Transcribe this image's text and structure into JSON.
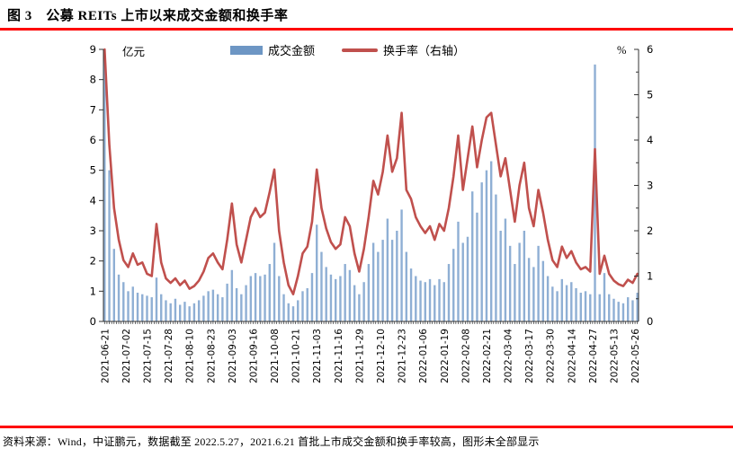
{
  "header": {
    "title": "图 3　公募 REITs 上市以来成交金额和换手率"
  },
  "footer": {
    "source_note": "资料来源：Wind，中证鹏元，数据截至 2022.5.27，2021.6.21 首批上市成交金额和换手率较高，图形未全部显示"
  },
  "chart_data": {
    "type": "bar",
    "title": "公募REITs上市以来成交金额和换手率",
    "legend_position": "top-center",
    "grid": false,
    "sample_step_days": 2,
    "total_days": 227,
    "x_label_step_days": 9,
    "x_tick_labels": [
      "2021-06-21",
      "2021-07-02",
      "2021-07-15",
      "2021-07-28",
      "2021-08-10",
      "2021-08-23",
      "2021-09-03",
      "2021-09-16",
      "2021-10-08",
      "2021-10-21",
      "2021-11-03",
      "2021-11-16",
      "2021-11-29",
      "2021-12-10",
      "2021-12-23",
      "2022-01-06",
      "2022-01-19",
      "2022-02-08",
      "2022-02-21",
      "2022-03-04",
      "2022-03-17",
      "2022-03-30",
      "2022-04-14",
      "2022-04-27",
      "2022-05-13",
      "2022-05-26"
    ],
    "left_axis": {
      "title": "亿元",
      "min": 0,
      "max": 9,
      "tick_labels": [
        "0",
        "1",
        "2",
        "3",
        "4",
        "5",
        "6",
        "7",
        "8",
        "9"
      ]
    },
    "right_axis": {
      "title": "%",
      "min": 0,
      "max": 6,
      "tick_labels": [
        "0",
        "1",
        "2",
        "3",
        "4",
        "5",
        "6"
      ],
      "minor_step": 0.5
    },
    "legend": [
      {
        "label": "成交金额",
        "type": "bar",
        "color": "#6d96c4"
      },
      {
        "label": "换手率（右轴）",
        "type": "line",
        "color": "#c0504d"
      }
    ],
    "series": [
      {
        "name": "成交金额",
        "type": "bar",
        "axis": "left",
        "color": "#8fafd4",
        "values": [
          9,
          5,
          2.4,
          1.55,
          1.3,
          1,
          1.15,
          0.95,
          0.9,
          0.85,
          0.8,
          1.45,
          0.9,
          0.7,
          0.6,
          0.75,
          0.55,
          0.65,
          0.5,
          0.6,
          0.7,
          0.85,
          1,
          1.05,
          0.9,
          0.8,
          1.25,
          1.7,
          1.1,
          0.9,
          1.2,
          1.5,
          1.6,
          1.5,
          1.55,
          1.9,
          2.6,
          1.5,
          0.9,
          0.6,
          0.5,
          0.7,
          1,
          1.1,
          1.6,
          3.2,
          2.3,
          1.8,
          1.55,
          1.4,
          1.5,
          1.9,
          1.7,
          1.2,
          0.9,
          1.3,
          1.9,
          2.6,
          2.3,
          2.7,
          3.4,
          2.7,
          3,
          3.7,
          2.3,
          1.75,
          1.5,
          1.35,
          1.3,
          1.4,
          1.2,
          1.4,
          1.3,
          1.9,
          2.4,
          3.3,
          2.6,
          2.8,
          4.3,
          3.6,
          4.6,
          5,
          5.3,
          4.2,
          3,
          3.4,
          2.5,
          1.9,
          2.6,
          3,
          2.1,
          1.8,
          2.5,
          2,
          1.5,
          1.15,
          1,
          1.4,
          1.2,
          1.3,
          1.1,
          0.95,
          1,
          0.9,
          8.5,
          0.9,
          1.6,
          0.9,
          0.75,
          0.65,
          0.6,
          0.8,
          0.7,
          0.95
        ]
      },
      {
        "name": "换手率（右轴）",
        "type": "line",
        "axis": "right",
        "color": "#c0504d",
        "values": [
          6,
          3.9,
          2.5,
          1.8,
          1.35,
          1.2,
          1.5,
          1.25,
          1.3,
          1.05,
          1,
          2.15,
          1.3,
          0.95,
          0.85,
          0.95,
          0.8,
          0.9,
          0.72,
          0.78,
          0.9,
          1.1,
          1.4,
          1.5,
          1.3,
          1.15,
          1.8,
          2.6,
          1.7,
          1.3,
          1.8,
          2.3,
          2.5,
          2.3,
          2.4,
          2.85,
          3.35,
          2,
          1.3,
          0.8,
          0.6,
          1,
          1.5,
          1.65,
          2.2,
          3.35,
          2.5,
          2.05,
          1.75,
          1.6,
          1.7,
          2.3,
          2.1,
          1.5,
          1.1,
          1.6,
          2.3,
          3.1,
          2.8,
          3.3,
          4.1,
          3.3,
          3.6,
          4.6,
          2.9,
          2.7,
          2.3,
          2.1,
          1.95,
          2.1,
          1.8,
          2.15,
          2,
          2.5,
          3.2,
          4.1,
          2.9,
          3.6,
          4.3,
          3.4,
          4,
          4.5,
          4.6,
          3.9,
          3.2,
          3.6,
          2.9,
          2.2,
          3,
          3.5,
          2.5,
          2.1,
          2.9,
          2.4,
          1.8,
          1.35,
          1.2,
          1.65,
          1.4,
          1.55,
          1.3,
          1.15,
          1.2,
          1.1,
          3.8,
          1.05,
          1.45,
          1.05,
          0.9,
          0.82,
          0.78,
          0.92,
          0.85,
          1.05
        ]
      }
    ]
  }
}
